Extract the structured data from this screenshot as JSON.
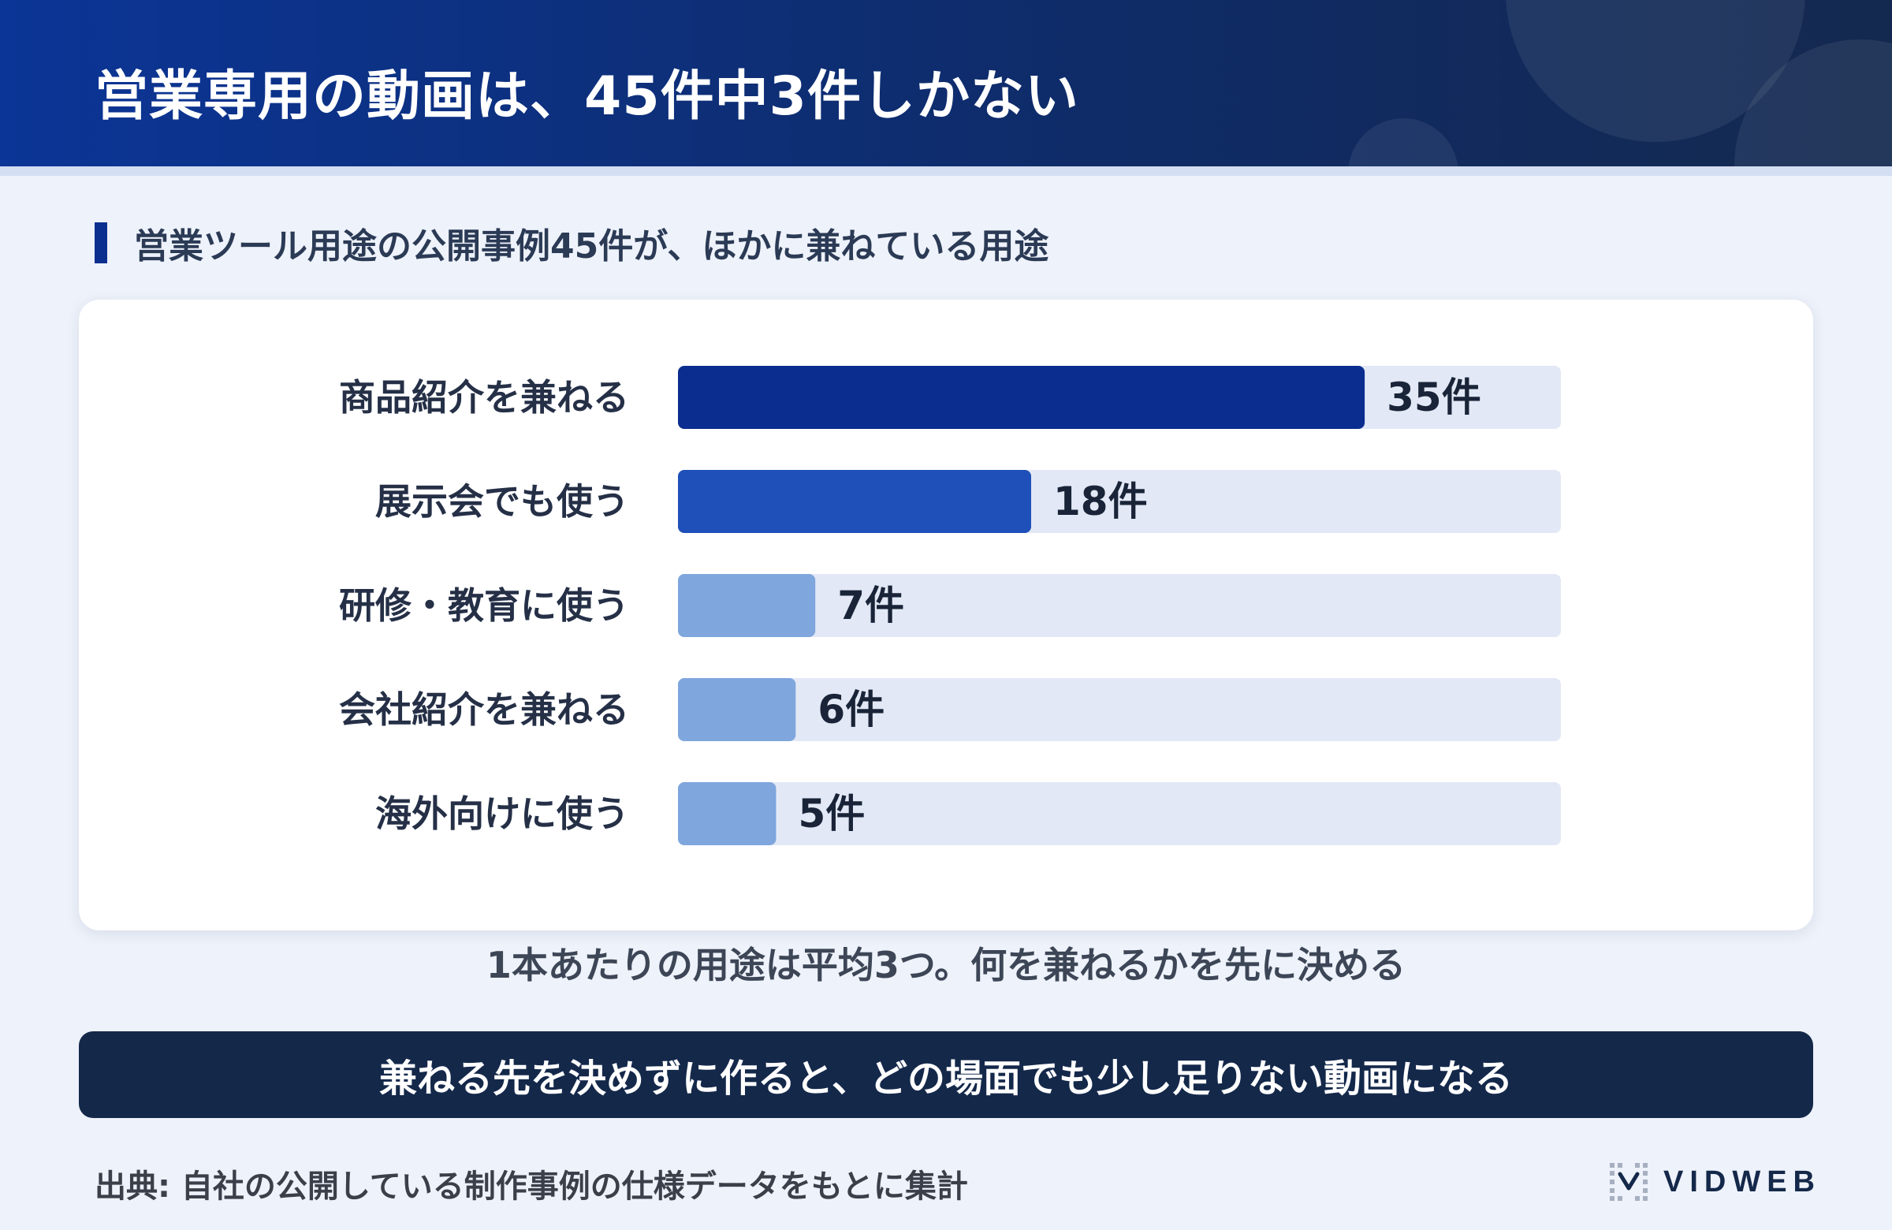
{
  "header": {
    "title": "営業専用の動画は、45件中3件しかない"
  },
  "subtitle": "営業ツール用途の公開事例45件が、ほかに兼ねている用途",
  "chart_data": {
    "type": "bar",
    "orientation": "horizontal",
    "categories": [
      "商品紹介を兼ねる",
      "展示会でも使う",
      "研修・教育に使う",
      "会社紹介を兼ねる",
      "海外向けに使う"
    ],
    "values": [
      35,
      18,
      7,
      6,
      5
    ],
    "value_labels": [
      "35件",
      "18件",
      "7件",
      "6件",
      "5件"
    ],
    "xlim": [
      0,
      45
    ],
    "bar_colors": [
      "#0a2d8f",
      "#1f4fb8",
      "#7fa6dd",
      "#7fa6dd",
      "#7fa6dd"
    ],
    "track_color": "#e2e8f5",
    "grid": false
  },
  "caption": "1本あたりの用途は平均3つ。何を兼ねるかを先に決める",
  "banner": "兼ねる先を決めずに作ると、どの場面でも少し足りない動画になる",
  "source": "出典: 自社の公開している制作事例の仕様データをもとに集計",
  "logo": {
    "text": "VIDWEB",
    "icon": "vidweb-logo-icon"
  }
}
